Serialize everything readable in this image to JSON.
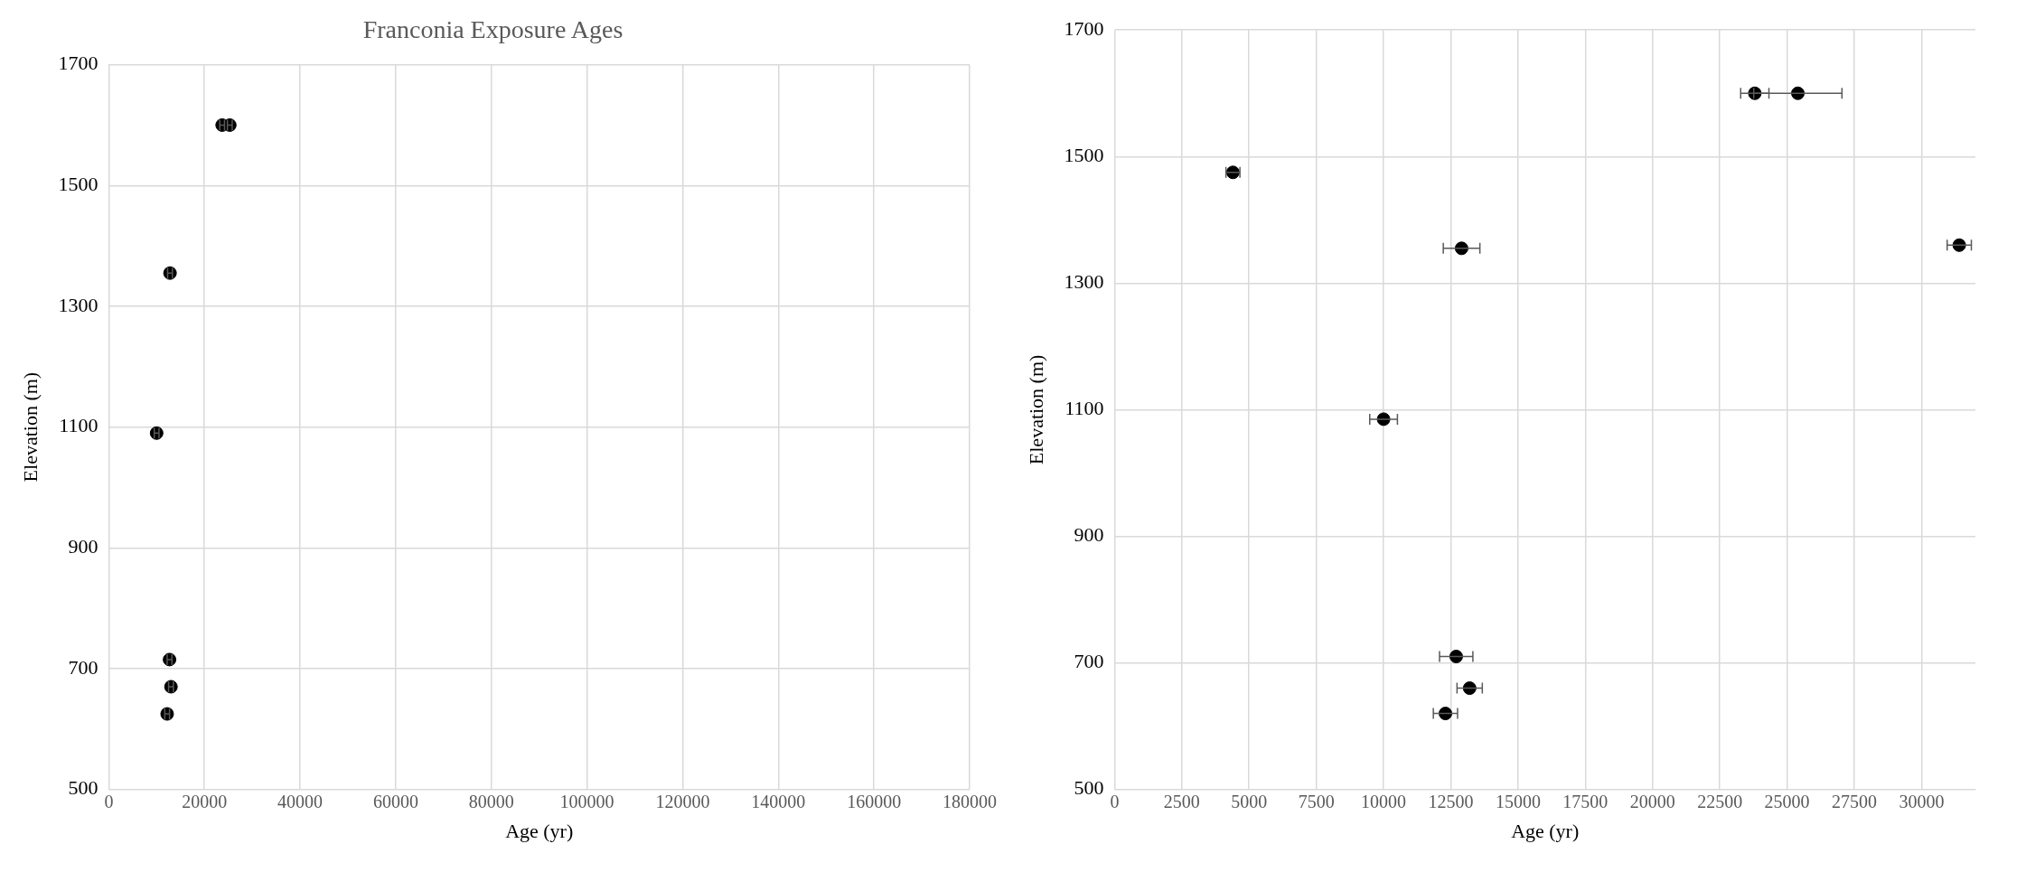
{
  "chart_data": [
    {
      "type": "scatter",
      "title": "Franconia Exposure Ages",
      "xlabel": "Age (yr)",
      "ylabel": "Elevation (m)",
      "xlim": [
        0,
        180000
      ],
      "xticks": [
        0,
        20000,
        40000,
        60000,
        80000,
        100000,
        120000,
        140000,
        160000,
        180000
      ],
      "ylim": [
        500,
        1700
      ],
      "yticks": [
        500,
        700,
        900,
        1100,
        1300,
        1500,
        1700
      ],
      "grid": true,
      "marker": "circle",
      "series": [
        {
          "color": "#000000",
          "x": [
            23700,
            25300,
            12800,
            10000,
            12700,
            13000,
            12200
          ],
          "values": [
            1600,
            1600,
            1355,
            1090,
            715,
            670,
            625
          ],
          "xerrors": [
            500,
            500,
            500,
            500,
            500,
            500,
            500
          ]
        }
      ]
    },
    {
      "type": "scatter",
      "xlabel": "Age (yr)",
      "ylabel": "Elevation (m)",
      "xlim": [
        0,
        32000
      ],
      "xticks": [
        0,
        2500,
        5000,
        7500,
        10000,
        12500,
        15000,
        17500,
        20000,
        22500,
        25000,
        27500,
        30000
      ],
      "ylim": [
        500,
        1700
      ],
      "yticks": [
        500,
        700,
        900,
        1100,
        1300,
        1500,
        1700
      ],
      "grid": true,
      "marker": "circle",
      "series": [
        {
          "color": "#000000",
          "x": [
            23800,
            25400,
            4400,
            12900,
            31400,
            10000,
            12700,
            13200,
            12300
          ],
          "values": [
            1600,
            1600,
            1475,
            1355,
            1360,
            1085,
            710,
            660,
            620
          ],
          "xerrors": [
            525,
            1640,
            260,
            680,
            450,
            515,
            620,
            470,
            450
          ]
        }
      ]
    }
  ]
}
